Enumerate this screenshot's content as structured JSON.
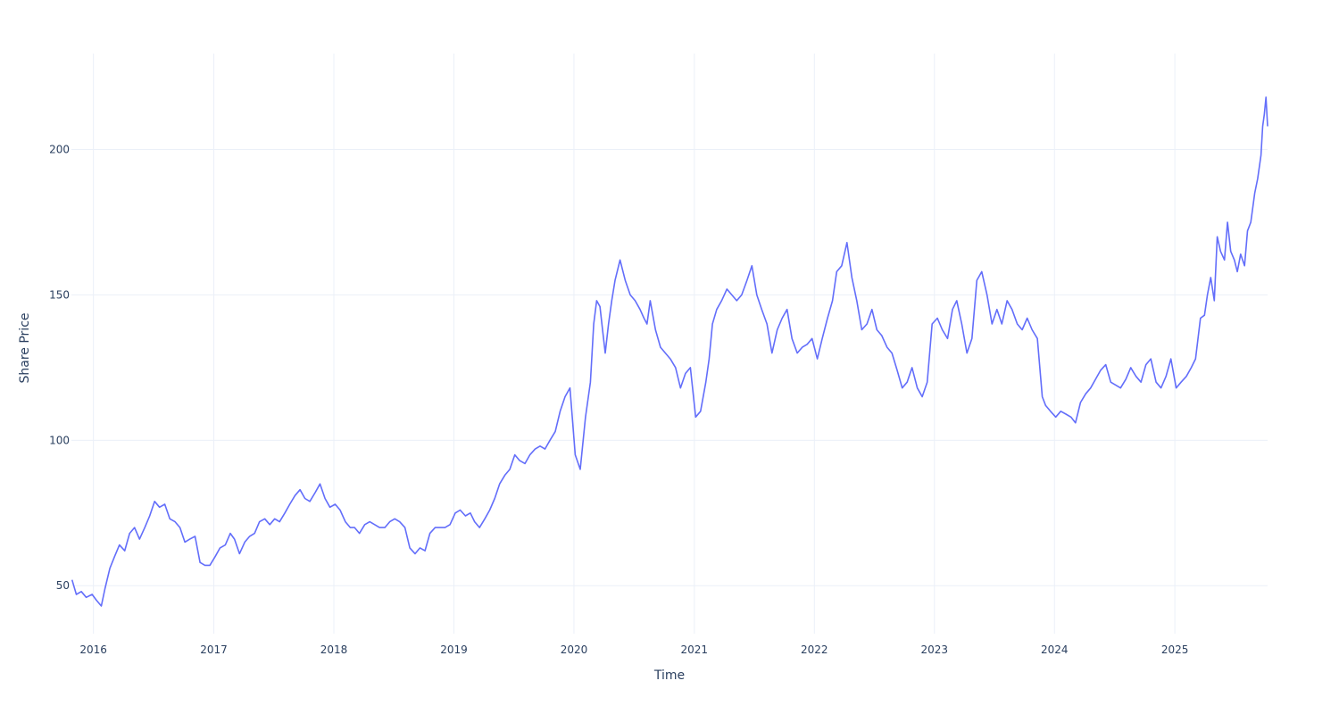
{
  "chart_data": {
    "type": "line",
    "title": "",
    "xlabel": "Time",
    "ylabel": "Share Price",
    "xlim": [
      "2015-10-26",
      "2025-10-10"
    ],
    "ylim": [
      33.5,
      233
    ],
    "x_ticks": [
      "2016",
      "2017",
      "2018",
      "2019",
      "2020",
      "2021",
      "2022",
      "2023",
      "2024",
      "2025"
    ],
    "y_ticks": [
      50,
      100,
      150,
      200
    ],
    "grid": true,
    "legend": "none",
    "line_color": "#636efa",
    "series": [
      {
        "x": [
          "2015-10-28",
          "2015-11-10",
          "2015-11-25",
          "2015-12-10",
          "2015-12-28",
          "2016-01-10",
          "2016-01-25",
          "2016-02-05",
          "2016-02-20",
          "2016-03-05",
          "2016-03-20",
          "2016-04-05",
          "2016-04-20",
          "2016-05-05",
          "2016-05-20",
          "2016-06-05",
          "2016-06-20",
          "2016-07-05",
          "2016-07-20",
          "2016-08-05",
          "2016-08-20",
          "2016-09-05",
          "2016-09-20",
          "2016-10-05",
          "2016-10-20",
          "2016-11-05",
          "2016-11-20",
          "2016-12-05",
          "2016-12-20",
          "2017-01-05",
          "2017-01-20",
          "2017-02-05",
          "2017-02-20",
          "2017-03-05",
          "2017-03-20",
          "2017-04-05",
          "2017-04-20",
          "2017-05-05",
          "2017-05-20",
          "2017-06-05",
          "2017-06-20",
          "2017-07-05",
          "2017-07-20",
          "2017-08-05",
          "2017-08-20",
          "2017-09-05",
          "2017-09-20",
          "2017-10-05",
          "2017-10-20",
          "2017-11-05",
          "2017-11-20",
          "2017-12-05",
          "2017-12-20",
          "2018-01-05",
          "2018-01-20",
          "2018-02-05",
          "2018-02-20",
          "2018-03-05",
          "2018-03-20",
          "2018-04-05",
          "2018-04-20",
          "2018-05-05",
          "2018-05-20",
          "2018-06-05",
          "2018-06-20",
          "2018-07-05",
          "2018-07-20",
          "2018-08-05",
          "2018-08-20",
          "2018-09-05",
          "2018-09-20",
          "2018-10-05",
          "2018-10-20",
          "2018-11-05",
          "2018-11-20",
          "2018-12-05",
          "2018-12-20",
          "2019-01-05",
          "2019-01-20",
          "2019-02-05",
          "2019-02-20",
          "2019-03-05",
          "2019-03-20",
          "2019-04-05",
          "2019-04-20",
          "2019-05-05",
          "2019-05-20",
          "2019-06-05",
          "2019-06-20",
          "2019-07-05",
          "2019-07-20",
          "2019-08-05",
          "2019-08-20",
          "2019-09-05",
          "2019-09-20",
          "2019-10-05",
          "2019-10-20",
          "2019-11-05",
          "2019-11-20",
          "2019-12-05",
          "2019-12-20",
          "2020-01-05",
          "2020-01-20",
          "2020-02-05",
          "2020-02-20",
          "2020-03-01",
          "2020-03-10",
          "2020-03-20",
          "2020-03-28",
          "2020-04-05",
          "2020-04-15",
          "2020-04-25",
          "2020-05-05",
          "2020-05-20",
          "2020-06-05",
          "2020-06-20",
          "2020-07-05",
          "2020-07-20",
          "2020-08-01",
          "2020-08-10",
          "2020-08-20",
          "2020-09-05",
          "2020-09-20",
          "2020-10-05",
          "2020-10-20",
          "2020-11-05",
          "2020-11-20",
          "2020-12-05",
          "2020-12-20",
          "2021-01-05",
          "2021-01-20",
          "2021-02-05",
          "2021-02-15",
          "2021-02-25",
          "2021-03-10",
          "2021-03-25",
          "2021-04-10",
          "2021-04-25",
          "2021-05-10",
          "2021-05-25",
          "2021-06-10",
          "2021-06-25",
          "2021-07-10",
          "2021-07-25",
          "2021-08-10",
          "2021-08-25",
          "2021-09-10",
          "2021-09-25",
          "2021-10-10",
          "2021-10-25",
          "2021-11-10",
          "2021-11-25",
          "2021-12-10",
          "2021-12-25",
          "2022-01-10",
          "2022-01-25",
          "2022-02-10",
          "2022-02-25",
          "2022-03-10",
          "2022-03-25",
          "2022-04-10",
          "2022-04-25",
          "2022-05-10",
          "2022-05-25",
          "2022-06-10",
          "2022-06-25",
          "2022-07-10",
          "2022-07-25",
          "2022-08-10",
          "2022-08-25",
          "2022-09-10",
          "2022-09-25",
          "2022-10-10",
          "2022-10-25",
          "2022-11-10",
          "2022-11-25",
          "2022-12-10",
          "2022-12-25",
          "2023-01-10",
          "2023-01-25",
          "2023-02-10",
          "2023-02-25",
          "2023-03-10",
          "2023-03-25",
          "2023-04-10",
          "2023-04-25",
          "2023-05-10",
          "2023-05-25",
          "2023-06-10",
          "2023-06-25",
          "2023-07-10",
          "2023-07-25",
          "2023-08-10",
          "2023-08-25",
          "2023-09-10",
          "2023-09-25",
          "2023-10-10",
          "2023-10-25",
          "2023-11-10",
          "2023-11-25",
          "2023-12-05",
          "2023-12-20",
          "2024-01-05",
          "2024-01-20",
          "2024-02-05",
          "2024-02-20",
          "2024-03-05",
          "2024-03-20",
          "2024-04-05",
          "2024-04-20",
          "2024-05-05",
          "2024-05-20",
          "2024-06-05",
          "2024-06-20",
          "2024-07-05",
          "2024-07-20",
          "2024-08-05",
          "2024-08-20",
          "2024-09-05",
          "2024-09-20",
          "2024-10-05",
          "2024-10-20",
          "2024-11-05",
          "2024-11-20",
          "2024-12-05",
          "2024-12-20",
          "2025-01-05",
          "2025-01-20",
          "2025-02-05",
          "2025-02-20",
          "2025-03-05",
          "2025-03-20",
          "2025-04-01",
          "2025-04-10",
          "2025-04-20",
          "2025-05-01",
          "2025-05-10",
          "2025-05-20",
          "2025-06-01",
          "2025-06-10",
          "2025-06-20",
          "2025-07-01",
          "2025-07-10",
          "2025-07-20",
          "2025-08-01",
          "2025-08-10",
          "2025-08-20",
          "2025-09-01",
          "2025-09-10",
          "2025-09-20",
          "2025-09-25",
          "2025-09-30",
          "2025-10-05",
          "2025-10-10"
        ],
        "values": [
          52,
          47,
          48,
          46,
          47,
          45,
          43,
          49,
          56,
          60,
          64,
          62,
          68,
          70,
          66,
          70,
          74,
          79,
          77,
          78,
          73,
          72,
          70,
          65,
          66,
          67,
          58,
          57,
          57,
          60,
          63,
          64,
          68,
          66,
          61,
          65,
          67,
          68,
          72,
          73,
          71,
          73,
          72,
          75,
          78,
          81,
          83,
          80,
          79,
          82,
          85,
          80,
          77,
          78,
          76,
          72,
          70,
          70,
          68,
          71,
          72,
          71,
          70,
          70,
          72,
          73,
          72,
          70,
          63,
          61,
          63,
          62,
          68,
          70,
          70,
          70,
          71,
          75,
          76,
          74,
          75,
          72,
          70,
          73,
          76,
          80,
          85,
          88,
          90,
          95,
          93,
          92,
          95,
          97,
          98,
          97,
          100,
          103,
          110,
          115,
          118,
          95,
          90,
          108,
          120,
          140,
          148,
          146,
          138,
          130,
          140,
          148,
          155,
          162,
          155,
          150,
          148,
          145,
          142,
          140,
          148,
          138,
          132,
          130,
          128,
          125,
          118,
          123,
          125,
          108,
          110,
          120,
          128,
          140,
          145,
          148,
          152,
          150,
          148,
          150,
          155,
          160,
          150,
          145,
          140,
          130,
          138,
          142,
          145,
          135,
          130,
          132,
          133,
          135,
          128,
          135,
          142,
          148,
          158,
          160,
          168,
          156,
          148,
          138,
          140,
          145,
          138,
          136,
          132,
          130,
          124,
          118,
          120,
          125,
          118,
          115,
          120,
          140,
          142,
          138,
          135,
          145,
          148,
          140,
          130,
          135,
          155,
          158,
          150,
          140,
          145,
          140,
          148,
          145,
          140,
          138,
          142,
          138,
          135,
          115,
          112,
          110,
          108,
          110,
          109,
          108,
          106,
          113,
          116,
          118,
          121,
          124,
          126,
          120,
          119,
          118,
          121,
          125,
          122,
          120,
          126,
          128,
          120,
          118,
          122,
          128,
          118,
          120,
          122,
          125,
          128,
          142,
          143,
          150,
          156,
          148,
          170,
          165,
          162,
          175,
          165,
          162,
          158,
          164,
          160,
          172,
          175,
          185,
          190,
          198,
          208,
          212,
          218,
          208
        ]
      }
    ]
  }
}
